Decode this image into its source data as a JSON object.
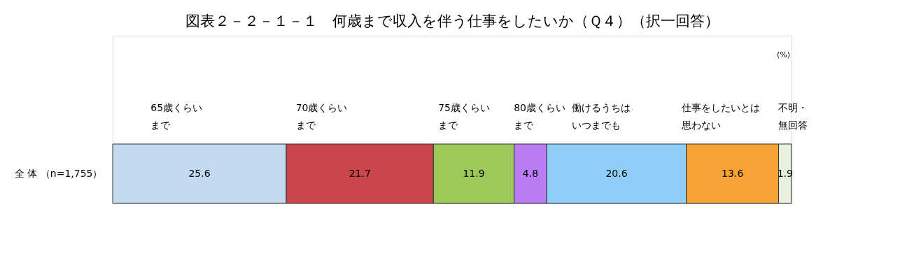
{
  "chart_data": {
    "type": "bar",
    "orientation": "horizontal",
    "stacked": true,
    "title": "図表２－２－１－１　何歳まで収入を伴う仕事をしたいか（Ｑ４）（択一回答）",
    "categories": [
      "全 体 （n=1,755）"
    ],
    "series": [
      {
        "name": "65歳くらいまで",
        "color": "#c5d9ee",
        "values": [
          25.6
        ]
      },
      {
        "name": "70歳くらいまで",
        "color": "#c9474a",
        "values": [
          21.7
        ]
      },
      {
        "name": "75歳くらいまで",
        "color": "#9cc95a",
        "values": [
          11.9
        ]
      },
      {
        "name": "80歳くらいまで",
        "color": "#b97cf2",
        "values": [
          4.8
        ]
      },
      {
        "name": "働けるうちはいつまでも",
        "color": "#8fcff7",
        "values": [
          20.6
        ]
      },
      {
        "name": "仕事をしたいとは思わない",
        "color": "#f5a335",
        "values": [
          13.6
        ]
      },
      {
        "name": "不明・無回答",
        "color": "#e6f0dc",
        "values": [
          1.9
        ]
      }
    ],
    "data_labels": true,
    "annotations": [
      "(%)"
    ]
  }
}
